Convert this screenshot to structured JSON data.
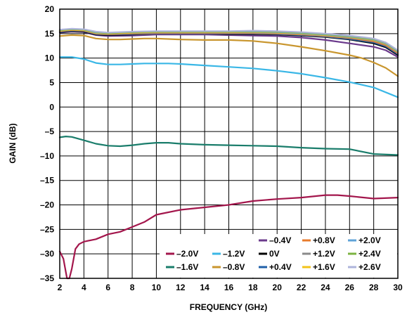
{
  "chart_data": {
    "type": "line",
    "xlabel": "FREQUENCY (GHz)",
    "ylabel": "GAIN (dB)",
    "xlim": [
      2,
      30
    ],
    "ylim": [
      -35,
      20
    ],
    "xticks": [
      "2",
      "4",
      "6",
      "8",
      "10",
      "12",
      "14",
      "16",
      "18",
      "20",
      "22",
      "24",
      "26",
      "28",
      "30"
    ],
    "yticks": [
      "20",
      "15",
      "10",
      "5",
      "0",
      "–5",
      "–10",
      "–15",
      "–20",
      "–25",
      "–30",
      "–35"
    ],
    "grid": true,
    "legend_position": "bottom-right",
    "series": [
      {
        "name": "–2.0V",
        "color": "#a3164c",
        "x": [
          2,
          2.3,
          2.6,
          2.8,
          3.0,
          3.3,
          3.6,
          4,
          5,
          6,
          7,
          8,
          9,
          10,
          12,
          14,
          16,
          18,
          20,
          22,
          24,
          25,
          26,
          28,
          30
        ],
        "y": [
          -29.5,
          -31,
          -35,
          -35,
          -33,
          -29,
          -28,
          -27.5,
          -27,
          -26,
          -25.5,
          -24.5,
          -23.5,
          -22,
          -21,
          -20.5,
          -20,
          -19.2,
          -18.8,
          -18.5,
          -18,
          -18,
          -18.2,
          -18.7,
          -18.5
        ]
      },
      {
        "name": "–1.6V",
        "color": "#1a7d6b",
        "x": [
          2,
          2.5,
          3,
          4,
          5,
          6,
          7,
          8,
          9,
          10,
          11,
          12,
          14,
          16,
          18,
          20,
          22,
          24,
          26,
          28,
          30
        ],
        "y": [
          -6.2,
          -6,
          -6.1,
          -6.8,
          -7.5,
          -7.9,
          -8.0,
          -7.8,
          -7.5,
          -7.3,
          -7.3,
          -7.5,
          -7.7,
          -7.8,
          -7.9,
          -8.0,
          -8.3,
          -8.5,
          -8.6,
          -9.6,
          -9.8
        ]
      },
      {
        "name": "–1.2V",
        "color": "#3ab7e6",
        "x": [
          2,
          3,
          4,
          5,
          6,
          7,
          8,
          9,
          10,
          11,
          12,
          14,
          16,
          18,
          20,
          22,
          24,
          26,
          28,
          30
        ],
        "y": [
          10.2,
          10.2,
          9.8,
          9.0,
          8.7,
          8.7,
          8.8,
          8.9,
          8.9,
          8.9,
          8.8,
          8.5,
          8.2,
          7.9,
          7.4,
          6.8,
          6.0,
          5.1,
          4.0,
          2.0
        ]
      },
      {
        "name": "–0.8V",
        "color": "#c9962e",
        "x": [
          2,
          3,
          4,
          5,
          6,
          7,
          8,
          9,
          10,
          12,
          14,
          16,
          18,
          20,
          22,
          24,
          26,
          27,
          28,
          29,
          30
        ],
        "y": [
          14.5,
          14.7,
          14.6,
          14.0,
          13.8,
          13.8,
          13.9,
          14.0,
          14.0,
          13.8,
          13.7,
          13.7,
          13.5,
          13.0,
          12.3,
          11.5,
          10.6,
          10.0,
          9.1,
          8.0,
          6.3
        ]
      },
      {
        "name": "–0.4V",
        "color": "#6b3a8c",
        "x": [
          2,
          3,
          4,
          5,
          6,
          8,
          10,
          12,
          14,
          16,
          18,
          20,
          22,
          24,
          26,
          28,
          29,
          30
        ],
        "y": [
          15.2,
          15.4,
          15.3,
          14.7,
          14.5,
          14.6,
          14.8,
          14.8,
          14.8,
          14.7,
          14.6,
          14.5,
          14.2,
          13.7,
          13.0,
          12.3,
          11.6,
          10.2
        ]
      },
      {
        "name": "0V",
        "color": "#000000",
        "x": [
          2,
          3,
          4,
          5,
          6,
          8,
          10,
          12,
          14,
          16,
          18,
          20,
          22,
          24,
          26,
          28,
          29,
          30
        ],
        "y": [
          15.3,
          15.5,
          15.4,
          14.8,
          14.7,
          14.8,
          15.0,
          15.0,
          15.0,
          14.9,
          14.9,
          14.8,
          14.6,
          14.3,
          13.8,
          13.0,
          12.2,
          10.6
        ]
      },
      {
        "name": "+0.4V",
        "color": "#1f5fa8",
        "x": [
          2,
          3,
          4,
          5,
          6,
          8,
          10,
          12,
          14,
          16,
          18,
          20,
          22,
          24,
          26,
          28,
          29,
          30
        ],
        "y": [
          15.4,
          15.6,
          15.5,
          14.9,
          14.8,
          14.9,
          15.0,
          15.0,
          15.0,
          15.0,
          15.0,
          14.9,
          14.7,
          14.4,
          13.9,
          13.2,
          12.4,
          10.8
        ]
      },
      {
        "name": "+0.8V",
        "color": "#e87b2c",
        "x": [
          2,
          3,
          4,
          5,
          6,
          8,
          10,
          12,
          14,
          16,
          18,
          20,
          22,
          24,
          26,
          28,
          29,
          30
        ],
        "y": [
          15.5,
          15.7,
          15.6,
          15.0,
          14.9,
          15.0,
          15.1,
          15.1,
          15.1,
          15.1,
          15.1,
          15.0,
          14.8,
          14.5,
          14.1,
          13.4,
          12.6,
          11.0
        ]
      },
      {
        "name": "+1.2V",
        "color": "#8a8a8a",
        "x": [
          2,
          3,
          4,
          5,
          6,
          8,
          10,
          12,
          14,
          16,
          18,
          20,
          22,
          24,
          26,
          28,
          29,
          30
        ],
        "y": [
          15.6,
          15.8,
          15.7,
          15.1,
          15.0,
          15.1,
          15.2,
          15.2,
          15.2,
          15.2,
          15.2,
          15.1,
          14.9,
          14.6,
          14.2,
          13.6,
          12.8,
          11.2
        ]
      },
      {
        "name": "+1.6V",
        "color": "#f2c318",
        "x": [
          2,
          3,
          4,
          5,
          6,
          8,
          10,
          12,
          14,
          16,
          18,
          20,
          22,
          24,
          26,
          28,
          29,
          30
        ],
        "y": [
          15.6,
          15.8,
          15.7,
          15.1,
          15.0,
          15.2,
          15.3,
          15.3,
          15.3,
          15.3,
          15.3,
          15.2,
          15.0,
          14.7,
          14.3,
          13.7,
          12.9,
          11.3
        ]
      },
      {
        "name": "+2.0V",
        "color": "#5fa3d8",
        "x": [
          2,
          3,
          4,
          5,
          6,
          8,
          10,
          12,
          14,
          16,
          18,
          20,
          22,
          24,
          26,
          28,
          29,
          30
        ],
        "y": [
          15.7,
          15.9,
          15.8,
          15.2,
          15.1,
          15.3,
          15.4,
          15.4,
          15.4,
          15.4,
          15.4,
          15.3,
          15.1,
          14.8,
          14.4,
          13.8,
          13.0,
          11.4
        ]
      },
      {
        "name": "+2.4V",
        "color": "#7cb342",
        "x": [
          2,
          3,
          4,
          5,
          6,
          8,
          10,
          12,
          14,
          16,
          18,
          20,
          22,
          24,
          26,
          28,
          29,
          30
        ],
        "y": [
          15.7,
          15.9,
          15.8,
          15.3,
          15.1,
          15.3,
          15.4,
          15.4,
          15.4,
          15.4,
          15.5,
          15.4,
          15.2,
          14.9,
          14.5,
          13.9,
          13.1,
          11.5
        ]
      },
      {
        "name": "+2.6V",
        "color": "#aeb4db",
        "x": [
          2,
          3,
          4,
          5,
          6,
          8,
          10,
          12,
          14,
          16,
          18,
          20,
          22,
          24,
          26,
          28,
          29,
          30
        ],
        "y": [
          15.8,
          16.0,
          15.9,
          15.4,
          15.2,
          15.4,
          15.5,
          15.5,
          15.5,
          15.5,
          15.6,
          15.5,
          15.3,
          15.0,
          14.6,
          14.0,
          13.2,
          11.6
        ]
      }
    ],
    "legend_rows": [
      [
        "–0.4V",
        "+0.8V",
        "+2.0V"
      ],
      [
        "–2.0V",
        "–1.2V",
        "0V",
        "+1.2V",
        "+2.4V"
      ],
      [
        "–1.6V",
        "–0.8V",
        "+0.4V",
        "+1.6V",
        "+2.6V"
      ]
    ]
  }
}
